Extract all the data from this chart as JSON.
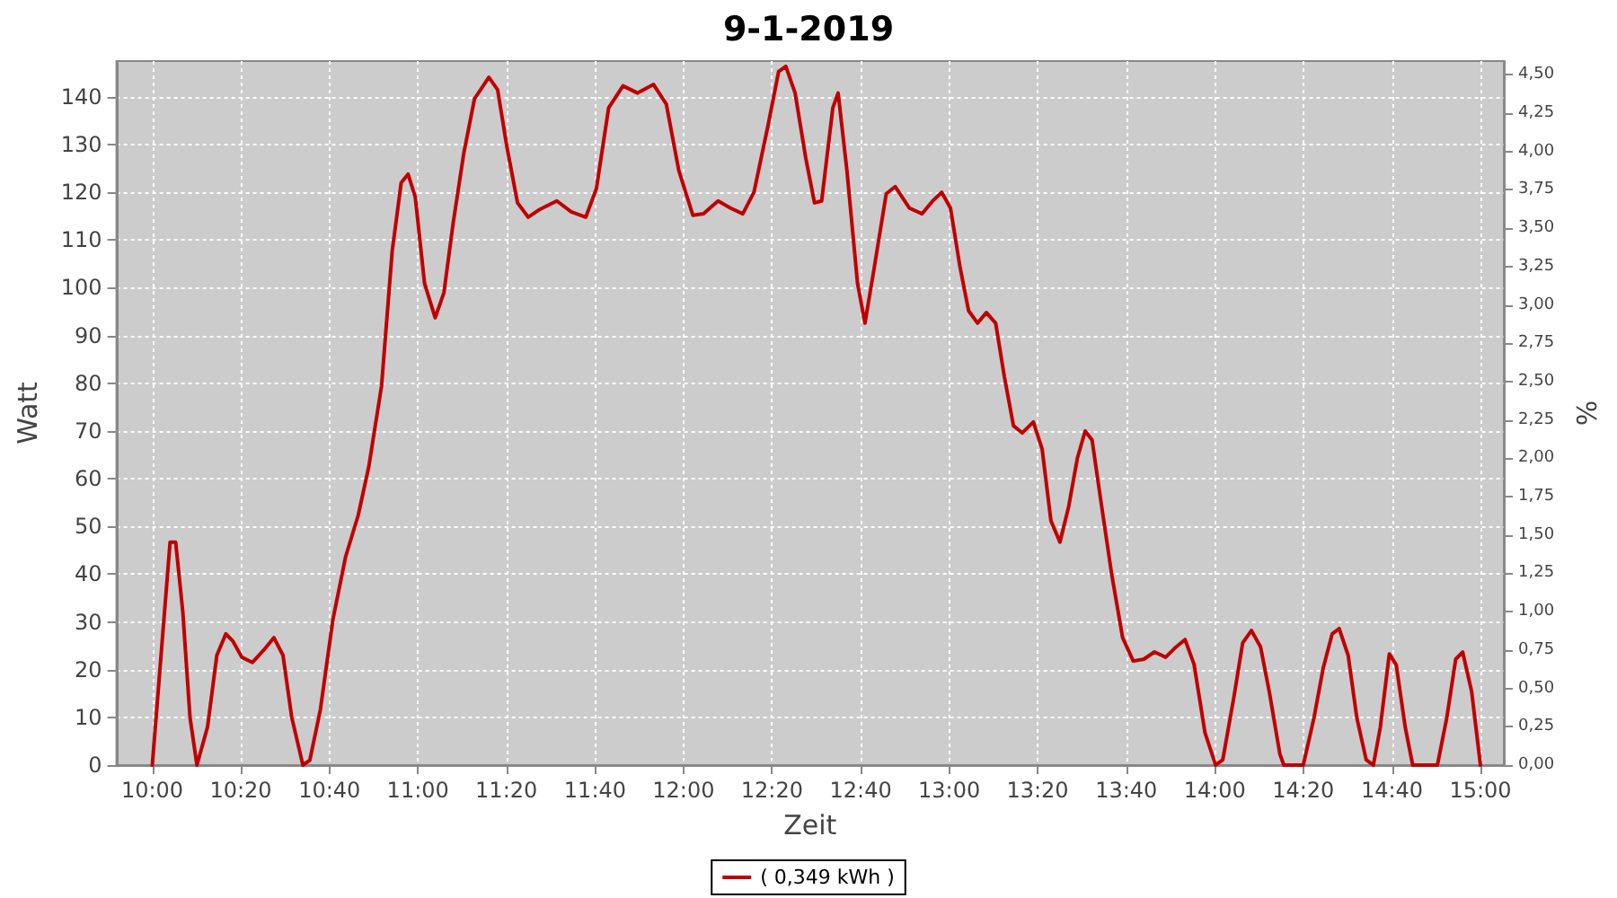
{
  "chart_data": {
    "type": "line",
    "title": "9-1-2019",
    "xlabel": "Zeit",
    "ylabel": "Watt",
    "y2label": "%",
    "x": [
      10,
      10.067,
      10.088,
      10.115,
      10.142,
      10.168,
      10.208,
      10.243,
      10.277,
      10.303,
      10.337,
      10.377,
      10.418,
      10.458,
      10.492,
      10.525,
      10.567,
      10.593,
      10.633,
      10.68,
      10.728,
      10.775,
      10.815,
      10.863,
      10.903,
      10.937,
      10.963,
      10.99,
      11.025,
      11.065,
      11.098,
      11.132,
      11.173,
      11.213,
      11.267,
      11.3,
      11.335,
      11.375,
      11.415,
      11.455,
      11.523,
      11.577,
      11.632,
      11.672,
      11.718,
      11.772,
      11.827,
      11.887,
      11.935,
      11.982,
      12.035,
      12.075,
      12.13,
      12.177,
      12.223,
      12.265,
      12.318,
      12.358,
      12.385,
      12.42,
      12.46,
      12.493,
      12.52,
      12.562,
      12.582,
      12.615,
      12.655,
      12.683,
      12.717,
      12.763,
      12.797,
      12.85,
      12.898,
      12.938,
      12.972,
      13.005,
      13.04,
      13.073,
      13.107,
      13.14,
      13.175,
      13.208,
      13.242,
      13.275,
      13.317,
      13.35,
      13.383,
      13.417,
      13.45,
      13.483,
      13.512,
      13.538,
      13.572,
      13.612,
      13.653,
      13.693,
      13.733,
      13.773,
      13.815,
      13.855,
      13.888,
      13.922,
      13.963,
      14.003,
      14.03,
      14.072,
      14.105,
      14.138,
      14.172,
      14.205,
      14.245,
      14.26,
      14.333,
      14.373,
      14.408,
      14.442,
      14.468,
      14.502,
      14.535,
      14.57,
      14.597,
      14.623,
      14.657,
      14.683,
      14.717,
      14.745,
      14.838,
      14.873,
      14.907,
      14.933,
      14.967,
      15
    ],
    "series": [
      {
        "name": "( 0,349 kWh )",
        "color": "#c00000",
        "values": [
          0,
          46.7,
          46.7,
          32,
          10,
          0,
          8,
          23,
          27.5,
          26,
          22.6,
          21.5,
          24,
          26.7,
          23,
          10,
          0,
          1,
          11.7,
          30.5,
          43.7,
          52.3,
          62.5,
          79.4,
          107.6,
          122,
          123.8,
          119,
          100.9,
          93.7,
          99,
          113.3,
          128.3,
          139.6,
          144.1,
          141.5,
          129.5,
          117.8,
          114.8,
          116.3,
          118.2,
          115.9,
          114.8,
          120.8,
          137.7,
          142.3,
          140.8,
          142.6,
          138.5,
          124.6,
          115.2,
          115.5,
          118.2,
          116.7,
          115.5,
          120,
          134,
          145.3,
          146.4,
          140.8,
          127.2,
          117.8,
          118.2,
          137.7,
          140.8,
          124.6,
          100.9,
          92.6,
          103.9,
          119.7,
          121.2,
          116.7,
          115.5,
          118.2,
          120,
          116.7,
          104.6,
          95.2,
          92.6,
          94.8,
          92.6,
          81.3,
          71.1,
          69.6,
          71.9,
          66.2,
          51.2,
          46.7,
          54.2,
          64.4,
          70,
          68.1,
          55,
          39.9,
          26.7,
          21.8,
          22.2,
          23.7,
          22.6,
          24.8,
          26.3,
          21.1,
          6.8,
          0,
          1.1,
          14.3,
          25.6,
          28.2,
          24.8,
          15.4,
          2.3,
          0,
          0,
          9.8,
          20.3,
          27.5,
          28.6,
          23,
          9.8,
          1.1,
          0,
          7.9,
          23.3,
          21,
          7.9,
          0,
          0,
          9.8,
          22.2,
          23.7,
          15.4,
          0
        ]
      }
    ],
    "xlim": [
      9.865,
      15.088
    ],
    "xticks": [
      {
        "value": 10,
        "label": "10:00"
      },
      {
        "value": 10.333,
        "label": "10:20"
      },
      {
        "value": 10.667,
        "label": "10:40"
      },
      {
        "value": 11,
        "label": "11:00"
      },
      {
        "value": 11.333,
        "label": "11:20"
      },
      {
        "value": 11.667,
        "label": "11:40"
      },
      {
        "value": 12,
        "label": "12:00"
      },
      {
        "value": 12.333,
        "label": "12:20"
      },
      {
        "value": 12.667,
        "label": "12:40"
      },
      {
        "value": 13,
        "label": "13:00"
      },
      {
        "value": 13.333,
        "label": "13:20"
      },
      {
        "value": 13.667,
        "label": "13:40"
      },
      {
        "value": 14,
        "label": "14:00"
      },
      {
        "value": 14.333,
        "label": "14:20"
      },
      {
        "value": 14.667,
        "label": "14:40"
      },
      {
        "value": 15,
        "label": "15:00"
      }
    ],
    "ylim": [
      0,
      147.5
    ],
    "yticks": [
      0,
      10,
      20,
      30,
      40,
      50,
      60,
      70,
      80,
      90,
      100,
      110,
      120,
      130,
      140
    ],
    "y2lim": [
      0,
      4.59
    ],
    "y2ticks": [
      {
        "value": 0,
        "label": "0,00"
      },
      {
        "value": 0.25,
        "label": "0,25"
      },
      {
        "value": 0.5,
        "label": "0,50"
      },
      {
        "value": 0.75,
        "label": "0,75"
      },
      {
        "value": 1,
        "label": "1,00"
      },
      {
        "value": 1.25,
        "label": "1,25"
      },
      {
        "value": 1.5,
        "label": "1,50"
      },
      {
        "value": 1.75,
        "label": "1,75"
      },
      {
        "value": 2,
        "label": "2,00"
      },
      {
        "value": 2.25,
        "label": "2,25"
      },
      {
        "value": 2.5,
        "label": "2,50"
      },
      {
        "value": 2.75,
        "label": "2,75"
      },
      {
        "value": 3,
        "label": "3,00"
      },
      {
        "value": 3.25,
        "label": "3,25"
      },
      {
        "value": 3.5,
        "label": "3,50"
      },
      {
        "value": 3.75,
        "label": "3,75"
      },
      {
        "value": 4,
        "label": "4,00"
      },
      {
        "value": 4.25,
        "label": "4,25"
      },
      {
        "value": 4.5,
        "label": "4,50"
      }
    ],
    "grid": true,
    "legend": "bottom",
    "marker": "none",
    "line_style": "solid"
  }
}
